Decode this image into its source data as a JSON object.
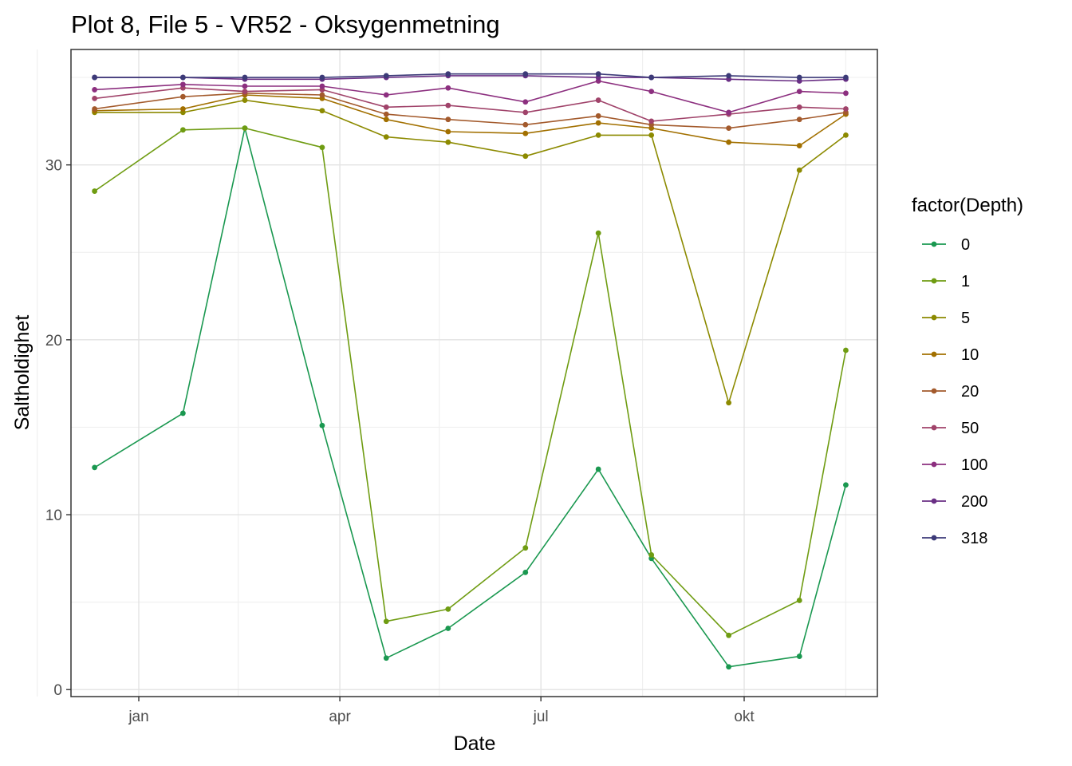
{
  "chart_data": {
    "type": "line",
    "title": "Plot 8, File 5 - VR52  -  Oksygenmetning",
    "xlabel": "Date",
    "ylabel": "Saltholdighet",
    "x_ticks": [
      "jan",
      "apr",
      "jul",
      "okt"
    ],
    "y_ticks": [
      0,
      10,
      20,
      30
    ],
    "ylim": [
      -0.4,
      36.6
    ],
    "grid": true,
    "legend_title": "factor(Depth)",
    "legend_position": "right",
    "x": [
      "2019-12-12",
      "2020-01-21",
      "2020-02-18",
      "2020-03-24",
      "2020-04-22",
      "2020-05-20",
      "2020-06-24",
      "2020-07-27",
      "2020-08-20",
      "2020-09-24",
      "2020-10-26",
      "2020-11-16"
    ],
    "series": [
      {
        "name": "0",
        "color": "#1a9850",
        "values": [
          12.7,
          15.8,
          32.1,
          15.1,
          1.8,
          3.5,
          6.7,
          12.6,
          7.5,
          1.3,
          1.9,
          11.7
        ]
      },
      {
        "name": "1",
        "color": "#6f9c12",
        "values": [
          28.5,
          32.0,
          32.1,
          31.0,
          3.9,
          4.6,
          8.1,
          26.1,
          7.7,
          3.1,
          5.1,
          19.4
        ]
      },
      {
        "name": "5",
        "color": "#8c8a00",
        "values": [
          33.0,
          33.0,
          33.7,
          33.1,
          31.6,
          31.3,
          30.5,
          31.7,
          31.7,
          16.4,
          29.7,
          31.7
        ]
      },
      {
        "name": "10",
        "color": "#a27000",
        "values": [
          33.1,
          33.2,
          34.0,
          33.8,
          32.6,
          31.9,
          31.8,
          32.4,
          32.1,
          31.3,
          31.1,
          32.9
        ]
      },
      {
        "name": "20",
        "color": "#a35a2c",
        "values": [
          33.2,
          33.9,
          34.1,
          34.0,
          32.9,
          32.6,
          32.3,
          32.8,
          32.3,
          32.1,
          32.6,
          33.0
        ]
      },
      {
        "name": "50",
        "color": "#a0436a",
        "values": [
          33.8,
          34.4,
          34.2,
          34.3,
          33.3,
          33.4,
          33.0,
          33.7,
          32.5,
          32.9,
          33.3,
          33.2
        ]
      },
      {
        "name": "100",
        "color": "#8c2f7f",
        "values": [
          34.3,
          34.6,
          34.5,
          34.5,
          34.0,
          34.4,
          33.6,
          34.8,
          34.2,
          33.0,
          34.2,
          34.1
        ]
      },
      {
        "name": "200",
        "color": "#6a2f85",
        "values": [
          35.0,
          35.0,
          34.9,
          34.9,
          35.0,
          35.1,
          35.1,
          35.0,
          35.0,
          34.9,
          34.8,
          34.9
        ]
      },
      {
        "name": "318",
        "color": "#3c3a78",
        "values": [
          35.0,
          35.0,
          35.0,
          35.0,
          35.1,
          35.2,
          35.2,
          35.2,
          35.0,
          35.1,
          35.0,
          35.0
        ]
      }
    ]
  }
}
